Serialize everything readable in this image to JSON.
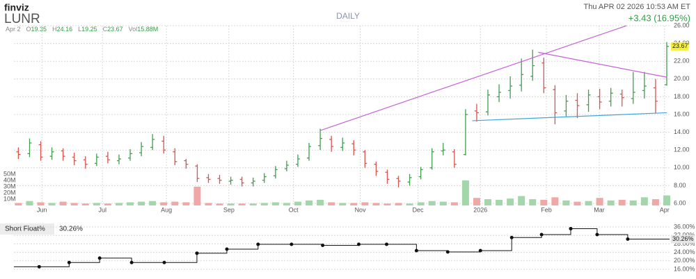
{
  "header": {
    "logo": "finviz",
    "ticker": "LUNR",
    "timeframe": "DAILY",
    "datetime": "Thu APR 02 2026 10:53 AM ET",
    "change": "+3.43 (16.95%)"
  },
  "quote": {
    "date": "Apr 2",
    "items": [
      {
        "label": "O",
        "value": "19.35"
      },
      {
        "label": "H",
        "value": "24.16"
      },
      {
        "label": "L",
        "value": "19.25"
      },
      {
        "label": "C",
        "value": "23.67"
      },
      {
        "label": "Vol",
        "value": "15.88M"
      }
    ]
  },
  "chart_data": [
    {
      "type": "ohlc",
      "open": [
        11.8,
        11.6,
        12.6,
        11.3,
        11.9,
        11.2,
        10.9,
        10.5,
        11.3,
        10.8,
        11.1,
        11.7,
        12.3,
        13.0,
        11.8,
        10.8,
        10.2,
        8.9,
        8.8,
        8.5,
        8.7,
        8.3,
        8.6,
        9.1,
        9.9,
        10.4,
        11.1,
        12.5,
        13.2,
        12.3,
        12.7,
        11.8,
        10.4,
        9.5,
        8.8,
        8.4,
        9.0,
        10.0,
        11.9,
        11.8,
        11.5,
        16.4,
        16.3,
        18.0,
        18.7,
        19.3,
        20.3,
        21.8,
        18.8,
        16.4,
        17.6,
        17.1,
        18.0,
        17.5,
        18.3,
        17.8,
        18.7,
        19.0,
        19.35
      ],
      "high": [
        12.3,
        13.3,
        13.0,
        12.3,
        12.2,
        11.7,
        11.3,
        11.6,
        11.8,
        11.5,
        12.1,
        12.9,
        13.8,
        13.6,
        12.2,
        11.0,
        10.4,
        9.3,
        9.2,
        9.0,
        9.0,
        8.9,
        9.4,
        10.2,
        10.8,
        11.5,
        12.8,
        14.4,
        13.6,
        13.4,
        13.1,
        12.0,
        10.7,
        9.8,
        9.1,
        9.3,
        10.1,
        12.2,
        12.8,
        12.1,
        16.6,
        17.2,
        18.8,
        19.4,
        20.3,
        22.3,
        23.3,
        22.4,
        19.3,
        18.2,
        18.4,
        18.8,
        18.9,
        19.0,
        18.8,
        20.8,
        20.8,
        20.0,
        24.16
      ],
      "low": [
        11.0,
        11.2,
        10.8,
        10.9,
        10.8,
        10.3,
        9.9,
        10.2,
        10.5,
        10.4,
        10.8,
        11.3,
        12.0,
        11.6,
        10.3,
        9.9,
        8.4,
        8.3,
        8.2,
        8.1,
        7.9,
        7.9,
        8.3,
        8.8,
        9.6,
        10.1,
        10.8,
        12.0,
        11.8,
        11.9,
        11.4,
        10.0,
        9.1,
        8.2,
        7.8,
        8.0,
        8.7,
        9.8,
        11.4,
        10.0,
        11.4,
        15.2,
        15.9,
        17.4,
        17.8,
        18.6,
        19.8,
        18.4,
        14.9,
        15.8,
        15.6,
        16.3,
        16.6,
        16.9,
        16.9,
        17.2,
        17.8,
        16.1,
        19.25
      ],
      "close": [
        11.5,
        12.8,
        11.2,
        11.8,
        11.3,
        10.8,
        10.4,
        11.2,
        10.9,
        11.0,
        11.6,
        12.4,
        13.2,
        12.0,
        10.7,
        10.4,
        8.8,
        8.7,
        8.6,
        8.6,
        8.3,
        8.5,
        9.0,
        9.8,
        10.3,
        11.0,
        12.4,
        13.3,
        12.4,
        12.8,
        12.0,
        10.5,
        9.6,
        8.7,
        8.5,
        8.9,
        9.8,
        11.8,
        12.0,
        10.4,
        16.0,
        16.2,
        18.2,
        18.5,
        19.2,
        20.5,
        21.5,
        19.0,
        16.2,
        17.5,
        17.0,
        18.2,
        17.4,
        18.4,
        17.9,
        18.5,
        19.2,
        17.5,
        23.67
      ],
      "up_color": "#3f9f4f",
      "down_color": "#d9534f",
      "xlim": [
        -0.4,
        58.25
      ],
      "ylim": [
        6,
        26
      ],
      "xticks": [
        {
          "value": 2.11,
          "label": "Jun"
        },
        {
          "value": 7.52,
          "label": "Jul"
        },
        {
          "value": 13.24,
          "label": "Aug"
        },
        {
          "value": 18.83,
          "label": "Sep"
        },
        {
          "value": 24.61,
          "label": "Oct"
        },
        {
          "value": 30.58,
          "label": "Nov"
        },
        {
          "value": 35.74,
          "label": "Dec"
        },
        {
          "value": 41.33,
          "label": "2026"
        },
        {
          "value": 47.23,
          "label": "Feb"
        },
        {
          "value": 51.96,
          "label": "Mar"
        },
        {
          "value": 57.8,
          "label": "Apr"
        }
      ],
      "yticks": [
        {
          "value": 6,
          "label": "6.00"
        },
        {
          "value": 8,
          "label": "8.00"
        },
        {
          "value": 10,
          "label": "10.00"
        },
        {
          "value": 12,
          "label": "12.00"
        },
        {
          "value": 14,
          "label": "14.00"
        },
        {
          "value": 16,
          "label": "16.00"
        },
        {
          "value": 18,
          "label": "18.00"
        },
        {
          "value": 20,
          "label": "20.00"
        },
        {
          "value": 22,
          "label": "22.00"
        },
        {
          "value": 24,
          "label": "24.00"
        },
        {
          "value": 26,
          "label": "26.00"
        }
      ],
      "grid": true,
      "trendlines": [
        {
          "color": "#c760d8",
          "x": [
            27,
            54.4
          ],
          "y": [
            14.2,
            26.0
          ]
        },
        {
          "color": "#c760d8",
          "x": [
            46.5,
            58
          ],
          "y": [
            23.0,
            20.2
          ]
        },
        {
          "color": "#3ea5e0",
          "x": [
            40.6,
            58
          ],
          "y": [
            15.3,
            16.2
          ]
        }
      ]
    },
    {
      "type": "volume",
      "values": [
        4,
        7,
        5,
        4,
        6,
        4,
        3,
        4,
        3,
        4,
        5,
        6,
        7,
        5,
        6,
        5,
        30,
        4,
        3,
        3,
        3,
        3,
        4,
        5,
        4,
        6,
        8,
        9,
        5,
        4,
        4,
        5,
        4,
        3,
        4,
        3,
        5,
        7,
        6,
        5,
        40,
        12,
        10,
        9,
        11,
        15,
        10,
        9,
        13,
        8,
        6,
        7,
        12,
        8,
        9,
        8,
        13,
        10,
        16
      ],
      "up_color": "#a3d6aa",
      "down_color": "#f2a7a7",
      "ylim": [
        0,
        50
      ],
      "yticks": [
        {
          "value": 10,
          "label": "10M"
        },
        {
          "value": 20,
          "label": "20M"
        },
        {
          "value": 30,
          "label": "30M"
        },
        {
          "value": 40,
          "label": "40M"
        },
        {
          "value": 50,
          "label": "50M"
        }
      ]
    },
    {
      "type": "step",
      "title": "Short Float%",
      "color": "#111111",
      "x": [
        1.86,
        4.54,
        7.27,
        10.13,
        13.05,
        15.97,
        18.65,
        21.44,
        24.43,
        27.22,
        30.45,
        32.94,
        35.61,
        38.41,
        41.33,
        44.13,
        46.8,
        49.41,
        51.77,
        54.51
      ],
      "values": [
        17.2,
        19.2,
        21.3,
        19.2,
        19.2,
        23.6,
        25.5,
        27.8,
        27.8,
        27.3,
        27.8,
        27.8,
        24.8,
        24.2,
        24.8,
        31.0,
        32.4,
        35.2,
        32.4,
        30.26
      ],
      "current": {
        "value": 30.26,
        "label": "30.26%"
      },
      "ylim": [
        16,
        36
      ],
      "yticks": [
        {
          "value": 16,
          "label": "16.00%"
        },
        {
          "value": 20,
          "label": "20.00%"
        },
        {
          "value": 24,
          "label": "24.00%"
        },
        {
          "value": 28,
          "label": "28.00%"
        },
        {
          "value": 32,
          "label": "32.00%"
        },
        {
          "value": 36,
          "label": "36.00%"
        }
      ]
    }
  ]
}
